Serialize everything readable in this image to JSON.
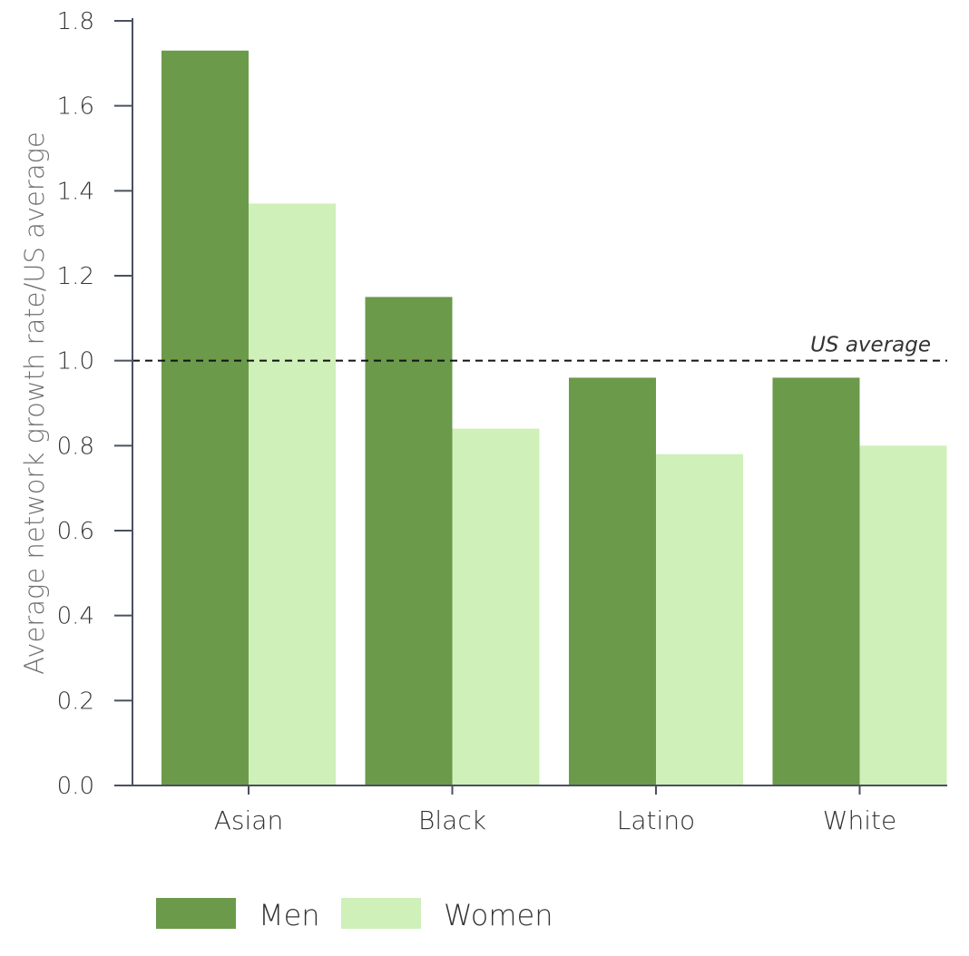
{
  "chart_data": {
    "type": "bar",
    "title": "",
    "xlabel": "",
    "ylabel": "Average network growth rate/US average",
    "ylim": [
      0,
      1.8
    ],
    "yticks": [
      "0.0",
      "0.2",
      "0.4",
      "0.6",
      "0.8",
      "1.0",
      "1.2",
      "1.4",
      "1.6",
      "1.8"
    ],
    "grid": false,
    "categories": [
      "Asian",
      "Black",
      "Latino",
      "White"
    ],
    "series": [
      {
        "name": "Men",
        "color": "#6b9a4b",
        "values": [
          1.73,
          1.15,
          0.96,
          0.96
        ]
      },
      {
        "name": "Women",
        "color": "#cff0b9",
        "values": [
          1.37,
          0.84,
          0.78,
          0.8
        ]
      }
    ],
    "reference_line": {
      "label": "US average",
      "value": 1.0,
      "style": "dashed"
    },
    "legend": {
      "position": "bottom-left",
      "entries": [
        "Men",
        "Women"
      ]
    }
  }
}
